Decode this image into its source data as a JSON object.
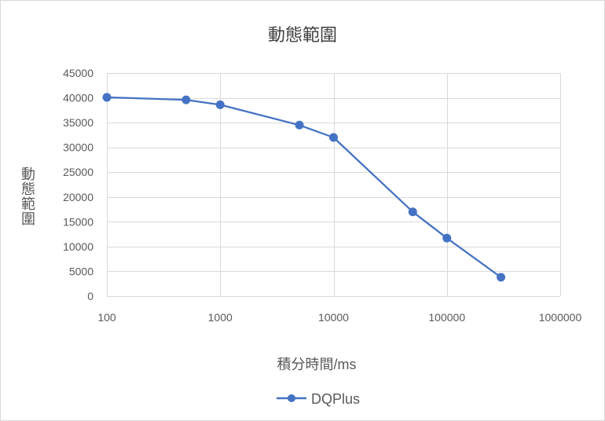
{
  "chart_data": {
    "type": "line",
    "title": "動態範圍",
    "xlabel": "積分時間/ms",
    "ylabel": "動態範圍",
    "x_scale": "log",
    "xlim": [
      100,
      1000000
    ],
    "ylim": [
      0,
      45000
    ],
    "x_ticks": [
      100,
      1000,
      10000,
      100000,
      1000000
    ],
    "y_ticks": [
      0,
      5000,
      10000,
      15000,
      20000,
      25000,
      30000,
      35000,
      40000,
      45000
    ],
    "grid": true,
    "legend": "bottom",
    "series": [
      {
        "name": "DQPlus",
        "color": "#4472C4",
        "x": [
          100,
          500,
          1000,
          5000,
          10000,
          50000,
          100000,
          300000
        ],
        "y": [
          40100,
          39600,
          38600,
          34500,
          32000,
          17000,
          11700,
          3800
        ]
      }
    ]
  }
}
